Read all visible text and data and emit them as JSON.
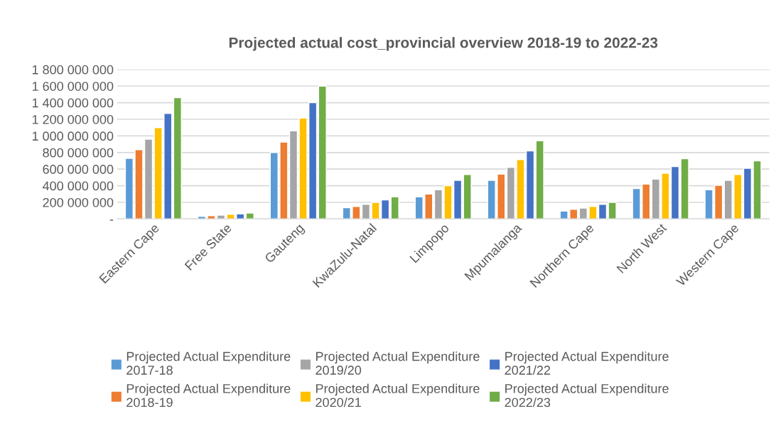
{
  "chart_data": {
    "type": "bar",
    "title": "Projected actual cost_provincial overview 2018-19 to 2022-23",
    "categories": [
      "Eastern Cape",
      "Free State",
      "Gauteng",
      "KwaZulu-Natal",
      "Limpopo",
      "Mpumalanga",
      "Northern Cape",
      "North West",
      "Western Cape"
    ],
    "series": [
      {
        "name": "Projected Actual Expenditure 2017-18",
        "color": "#5b9bd5",
        "values": [
          730000000,
          30000000,
          800000000,
          135000000,
          265000000,
          465000000,
          95000000,
          365000000,
          350000000
        ]
      },
      {
        "name": "Projected Actual Expenditure 2018-19",
        "color": "#ed7d31",
        "values": [
          835000000,
          40000000,
          925000000,
          150000000,
          300000000,
          540000000,
          115000000,
          420000000,
          405000000
        ]
      },
      {
        "name": "Projected Actual Expenditure 2019/20",
        "color": "#a5a5a5",
        "values": [
          960000000,
          45000000,
          1060000000,
          175000000,
          350000000,
          620000000,
          130000000,
          480000000,
          465000000
        ]
      },
      {
        "name": "Projected Actual Expenditure 2020/21",
        "color": "#ffc000",
        "values": [
          1100000000,
          55000000,
          1215000000,
          200000000,
          400000000,
          715000000,
          150000000,
          550000000,
          535000000
        ]
      },
      {
        "name": "Projected Actual Expenditure 2021/22",
        "color": "#4472c4",
        "values": [
          1270000000,
          60000000,
          1400000000,
          230000000,
          465000000,
          820000000,
          175000000,
          630000000,
          610000000
        ]
      },
      {
        "name": "Projected Actual Expenditure 2022/23",
        "color": "#70ad47",
        "values": [
          1460000000,
          70000000,
          1600000000,
          265000000,
          535000000,
          940000000,
          200000000,
          725000000,
          700000000
        ]
      }
    ],
    "ylim": [
      0,
      1800000000
    ],
    "yticks": [
      {
        "value": 0,
        "label": "-"
      },
      {
        "value": 200000000,
        "label": "200 000 000"
      },
      {
        "value": 400000000,
        "label": "400 000 000"
      },
      {
        "value": 600000000,
        "label": "600 000 000"
      },
      {
        "value": 800000000,
        "label": "800 000 000"
      },
      {
        "value": 1000000000,
        "label": "1 000 000 000"
      },
      {
        "value": 1200000000,
        "label": "1 200 000 000"
      },
      {
        "value": 1400000000,
        "label": "1 400 000 000"
      },
      {
        "value": 1600000000,
        "label": "1 600 000 000"
      },
      {
        "value": 1800000000,
        "label": "1 800 000 000"
      }
    ],
    "grid": "y",
    "legend": "bottom"
  }
}
